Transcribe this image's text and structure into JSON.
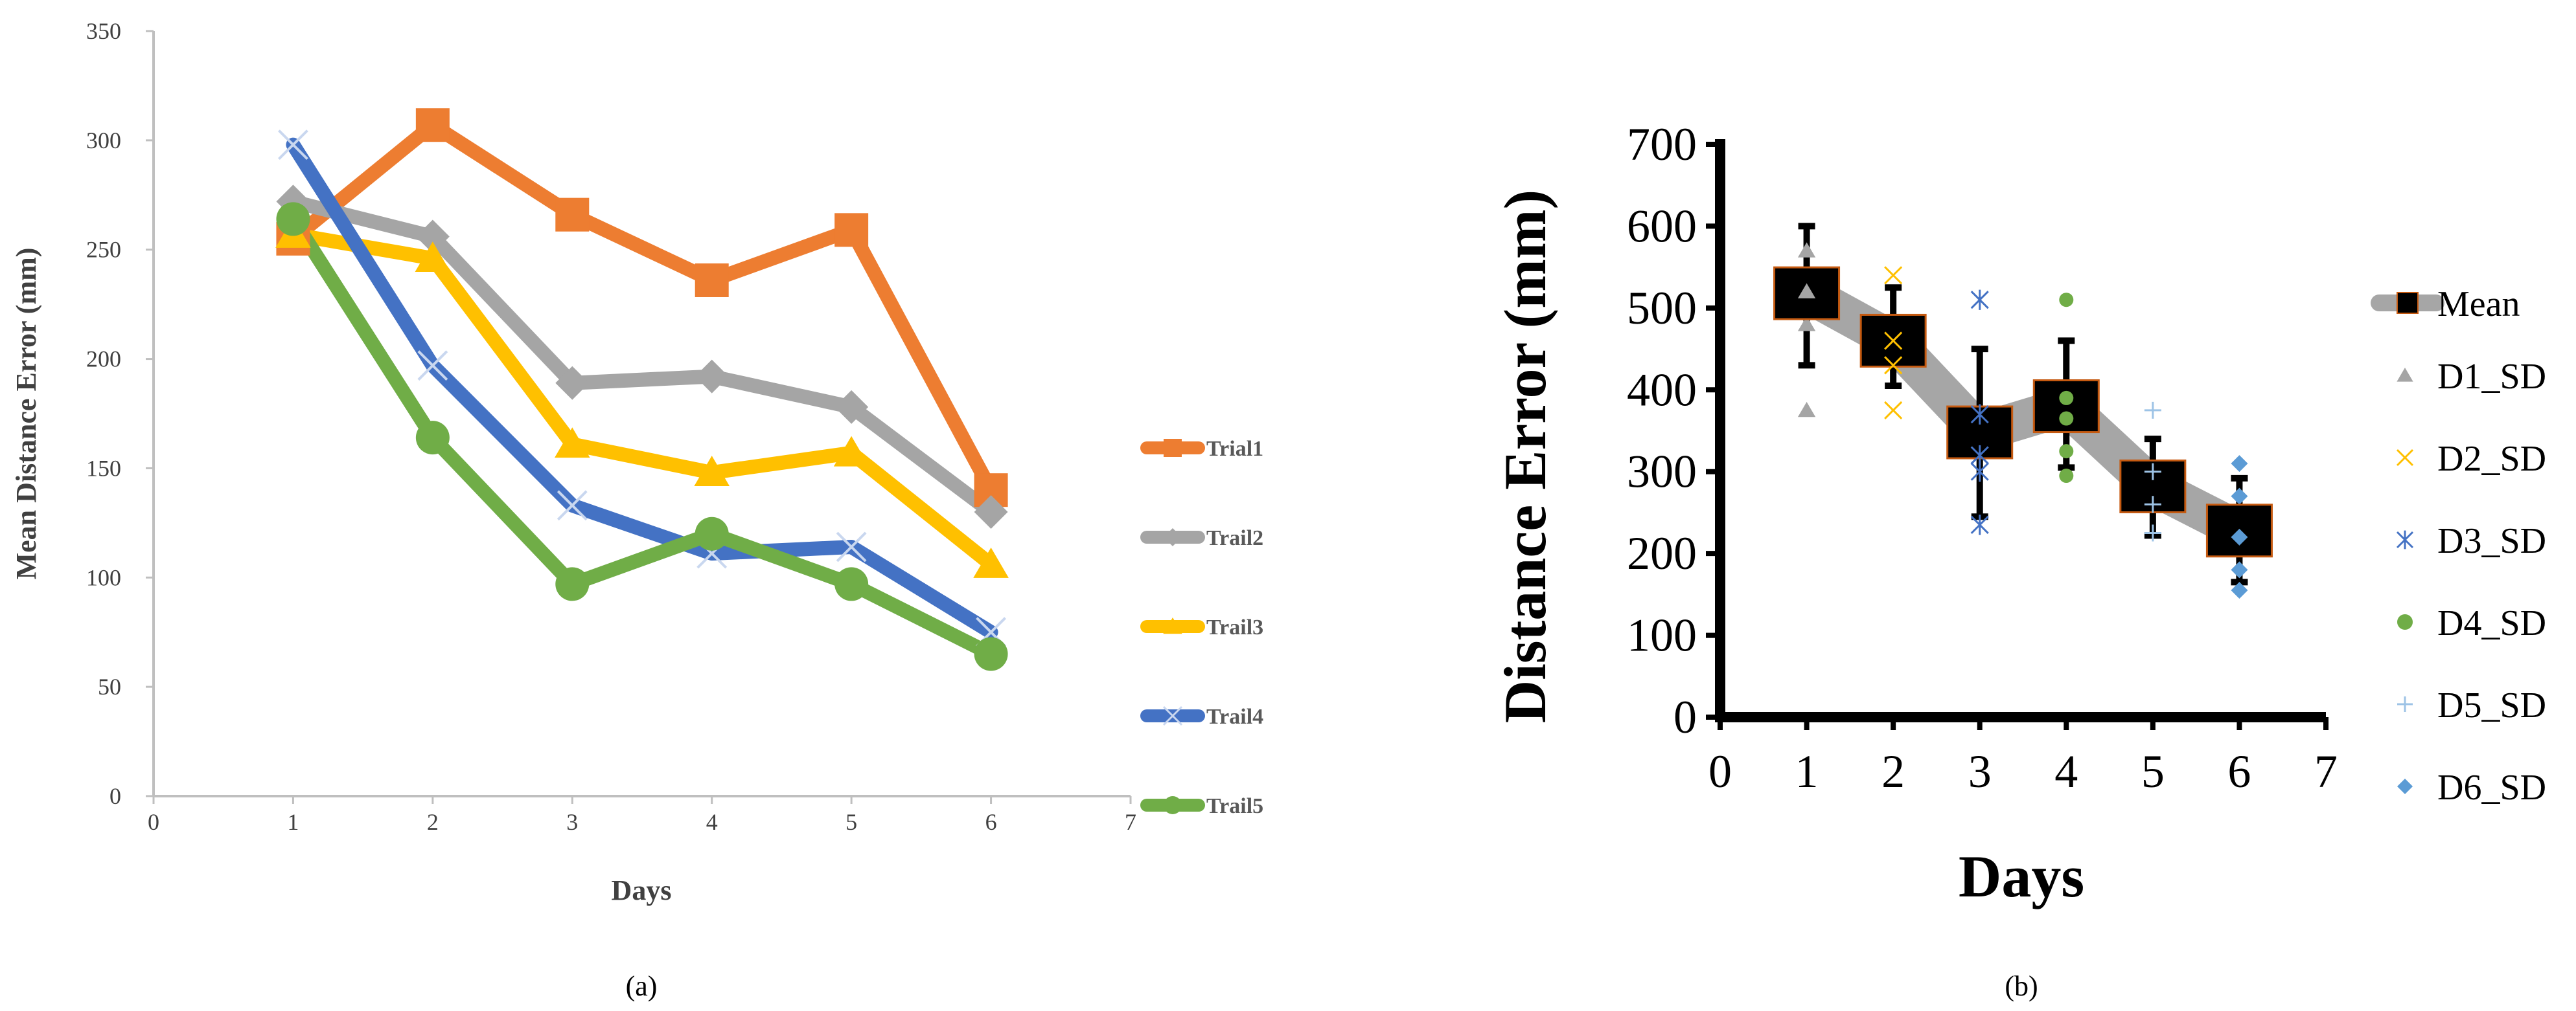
{
  "chart_data": [
    {
      "type": "line",
      "panel_label": "(a)",
      "xlabel": "Days",
      "ylabel": "Mean Distance Error (mm)",
      "xlim": [
        0,
        7
      ],
      "ylim": [
        0,
        350
      ],
      "x_ticks": [
        "0",
        "1",
        "2",
        "3",
        "4",
        "5",
        "6",
        "7"
      ],
      "y_ticks": [
        "0",
        "50",
        "100",
        "150",
        "200",
        "250",
        "300",
        "350"
      ],
      "grid": false,
      "legend_position": "right",
      "x": [
        1,
        2,
        3,
        4,
        5,
        6
      ],
      "series": [
        {
          "name": "Trial1",
          "color": "#ED7D31",
          "marker": "square",
          "values": [
            255,
            307,
            266,
            236,
            259,
            140
          ]
        },
        {
          "name": "Trail2",
          "color": "#A5A5A5",
          "marker": "diamond",
          "values": [
            272,
            256,
            189,
            192,
            178,
            130
          ]
        },
        {
          "name": "Trail3",
          "color": "#FFC000",
          "marker": "triangle",
          "values": [
            257,
            246,
            161,
            148,
            157,
            106
          ]
        },
        {
          "name": "Trail4",
          "color": "#4472C4",
          "marker": "x",
          "values": [
            298,
            197,
            133,
            111,
            114,
            75
          ]
        },
        {
          "name": "Trail5",
          "color": "#70AD47",
          "marker": "circle",
          "values": [
            264,
            164,
            97,
            120,
            97,
            65
          ]
        }
      ]
    },
    {
      "type": "scatter",
      "panel_label": "(b)",
      "xlabel": "Days",
      "ylabel": "Distance Error (mm)",
      "xlim": [
        0,
        7
      ],
      "ylim": [
        0,
        700
      ],
      "x_ticks": [
        "0",
        "1",
        "2",
        "3",
        "4",
        "5",
        "6",
        "7"
      ],
      "y_ticks": [
        "0",
        "100",
        "200",
        "300",
        "400",
        "500",
        "600",
        "700"
      ],
      "grid": false,
      "legend_position": "right",
      "mean": {
        "name": "Mean",
        "color": "#000000",
        "line_color": "#A6A6A6",
        "x": [
          1,
          2,
          3,
          4,
          5,
          6
        ],
        "values": [
          518,
          460,
          348,
          380,
          282,
          228
        ],
        "error_low": [
          430,
          405,
          245,
          305,
          222,
          165
        ],
        "error_high": [
          600,
          525,
          450,
          460,
          340,
          292
        ]
      },
      "series": [
        {
          "name": "D1_SD",
          "color": "#A5A5A5",
          "marker": "triangle",
          "x": [
            1,
            1,
            1,
            1
          ],
          "values": [
            375,
            480,
            520,
            570
          ]
        },
        {
          "name": "D2_SD",
          "color": "#FFC000",
          "marker": "x",
          "x": [
            2,
            2,
            2,
            2
          ],
          "values": [
            375,
            430,
            460,
            540
          ]
        },
        {
          "name": "D3_SD",
          "color": "#4472C4",
          "marker": "asterisk",
          "x": [
            3,
            3,
            3,
            3,
            3
          ],
          "values": [
            235,
            300,
            320,
            370,
            510
          ]
        },
        {
          "name": "D4_SD",
          "color": "#70AD47",
          "marker": "circle",
          "x": [
            4,
            4,
            4,
            4,
            4
          ],
          "values": [
            295,
            325,
            365,
            390,
            510
          ]
        },
        {
          "name": "D5_SD",
          "color": "#9DC3E6",
          "marker": "plus",
          "x": [
            5,
            5,
            5,
            5
          ],
          "values": [
            225,
            260,
            300,
            375
          ]
        },
        {
          "name": "D6_SD",
          "color": "#5B9BD5",
          "marker": "diamond",
          "x": [
            6,
            6,
            6,
            6,
            6
          ],
          "values": [
            155,
            180,
            220,
            270,
            310
          ]
        }
      ]
    }
  ]
}
